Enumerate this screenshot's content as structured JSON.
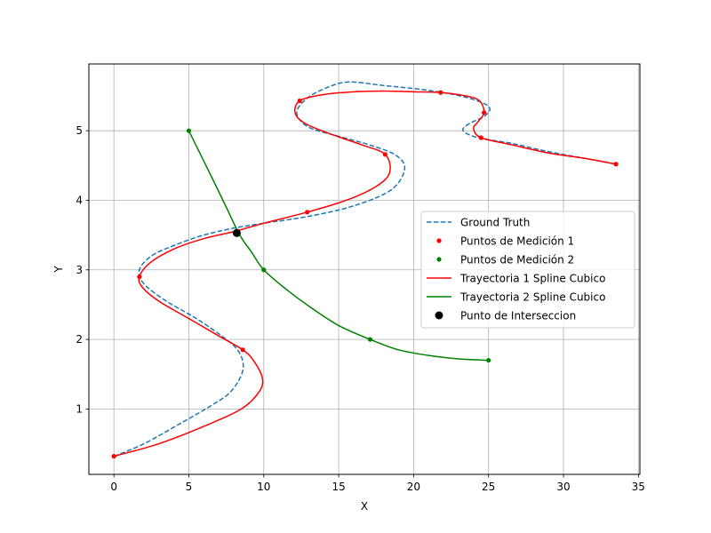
{
  "chart_data": {
    "type": "line",
    "title": "",
    "xlabel": "X",
    "ylabel": "Y",
    "xlim": [
      -1.67,
      35.1
    ],
    "ylim": [
      0.06,
      5.96
    ],
    "xticks": [
      0,
      5,
      10,
      15,
      20,
      25,
      30,
      35
    ],
    "yticks": [
      1,
      2,
      3,
      4,
      5
    ],
    "grid": true,
    "legend_position": "center-right",
    "series": [
      {
        "name": "Ground Truth",
        "kind": "line",
        "style": "dashed",
        "color": "#1f77b4",
        "points": [
          [
            0.0,
            0.32
          ],
          [
            2.0,
            0.5
          ],
          [
            4.5,
            0.8
          ],
          [
            6.5,
            1.05
          ],
          [
            7.8,
            1.25
          ],
          [
            8.6,
            1.55
          ],
          [
            8.4,
            1.8
          ],
          [
            7.5,
            2.0
          ],
          [
            5.5,
            2.3
          ],
          [
            3.5,
            2.55
          ],
          [
            2.0,
            2.8
          ],
          [
            1.7,
            3.0
          ],
          [
            2.5,
            3.2
          ],
          [
            4.0,
            3.35
          ],
          [
            6.0,
            3.5
          ],
          [
            8.0,
            3.6
          ],
          [
            10.0,
            3.67
          ],
          [
            13.0,
            3.77
          ],
          [
            16.0,
            3.92
          ],
          [
            18.5,
            4.15
          ],
          [
            19.4,
            4.45
          ],
          [
            18.8,
            4.65
          ],
          [
            17.0,
            4.8
          ],
          [
            15.0,
            4.92
          ],
          [
            13.0,
            5.05
          ],
          [
            12.2,
            5.25
          ],
          [
            12.8,
            5.45
          ],
          [
            14.0,
            5.6
          ],
          [
            15.6,
            5.7
          ],
          [
            18.0,
            5.65
          ],
          [
            21.0,
            5.58
          ],
          [
            23.5,
            5.48
          ],
          [
            25.0,
            5.35
          ],
          [
            24.8,
            5.22
          ],
          [
            23.7,
            5.1
          ],
          [
            23.3,
            5.0
          ],
          [
            24.3,
            4.9
          ],
          [
            26.5,
            4.82
          ],
          [
            29.0,
            4.7
          ],
          [
            31.5,
            4.6
          ],
          [
            33.5,
            4.52
          ]
        ]
      },
      {
        "name": "Puntos de Medición 1",
        "kind": "points",
        "color": "#ff0000",
        "points": [
          [
            0.0,
            0.32
          ],
          [
            8.6,
            1.85
          ],
          [
            1.7,
            2.9
          ],
          [
            12.9,
            3.83
          ],
          [
            18.1,
            4.66
          ],
          [
            12.4,
            5.43
          ],
          [
            21.8,
            5.55
          ],
          [
            24.7,
            5.26
          ],
          [
            24.5,
            4.9
          ],
          [
            33.5,
            4.52
          ]
        ]
      },
      {
        "name": "Puntos de Medición 2",
        "kind": "points",
        "color": "#008000",
        "points": [
          [
            5.0,
            5.0
          ],
          [
            10.0,
            3.0
          ],
          [
            17.1,
            2.0
          ],
          [
            25.0,
            1.7
          ]
        ]
      },
      {
        "name": "Trayectoria 1 Spline Cubico",
        "kind": "line",
        "style": "solid",
        "color": "#ff0000",
        "points": [
          [
            0.0,
            0.32
          ],
          [
            3.0,
            0.5
          ],
          [
            6.0,
            0.75
          ],
          [
            8.5,
            1.0
          ],
          [
            9.7,
            1.25
          ],
          [
            9.9,
            1.45
          ],
          [
            9.3,
            1.7
          ],
          [
            8.6,
            1.85
          ],
          [
            7.0,
            2.05
          ],
          [
            5.0,
            2.3
          ],
          [
            3.0,
            2.55
          ],
          [
            1.9,
            2.75
          ],
          [
            1.7,
            2.9
          ],
          [
            2.4,
            3.1
          ],
          [
            4.0,
            3.3
          ],
          [
            6.0,
            3.45
          ],
          [
            8.0,
            3.55
          ],
          [
            10.0,
            3.67
          ],
          [
            12.9,
            3.83
          ],
          [
            15.5,
            4.0
          ],
          [
            17.5,
            4.2
          ],
          [
            18.4,
            4.4
          ],
          [
            18.1,
            4.66
          ],
          [
            16.5,
            4.8
          ],
          [
            14.5,
            4.95
          ],
          [
            12.8,
            5.1
          ],
          [
            12.1,
            5.25
          ],
          [
            12.4,
            5.43
          ],
          [
            14.0,
            5.52
          ],
          [
            16.0,
            5.56
          ],
          [
            18.0,
            5.57
          ],
          [
            20.0,
            5.56
          ],
          [
            21.8,
            5.55
          ],
          [
            23.5,
            5.5
          ],
          [
            24.4,
            5.43
          ],
          [
            24.7,
            5.26
          ],
          [
            24.3,
            5.13
          ],
          [
            24.0,
            5.03
          ],
          [
            24.5,
            4.9
          ],
          [
            26.5,
            4.8
          ],
          [
            29.0,
            4.68
          ],
          [
            31.5,
            4.6
          ],
          [
            33.5,
            4.52
          ]
        ]
      },
      {
        "name": "Trayectoria 2 Spline Cubico",
        "kind": "line",
        "style": "solid",
        "color": "#008000",
        "points": [
          [
            5.0,
            5.0
          ],
          [
            5.8,
            4.65
          ],
          [
            6.6,
            4.3
          ],
          [
            7.5,
            3.9
          ],
          [
            8.4,
            3.5
          ],
          [
            9.2,
            3.25
          ],
          [
            10.0,
            3.0
          ],
          [
            11.5,
            2.72
          ],
          [
            13.0,
            2.48
          ],
          [
            15.0,
            2.2
          ],
          [
            17.1,
            2.0
          ],
          [
            19.0,
            1.85
          ],
          [
            21.0,
            1.77
          ],
          [
            23.0,
            1.72
          ],
          [
            25.0,
            1.7
          ]
        ]
      },
      {
        "name": "Punto de Interseccion",
        "kind": "marker",
        "color": "#000000",
        "points": [
          [
            8.2,
            3.53
          ]
        ]
      }
    ]
  }
}
